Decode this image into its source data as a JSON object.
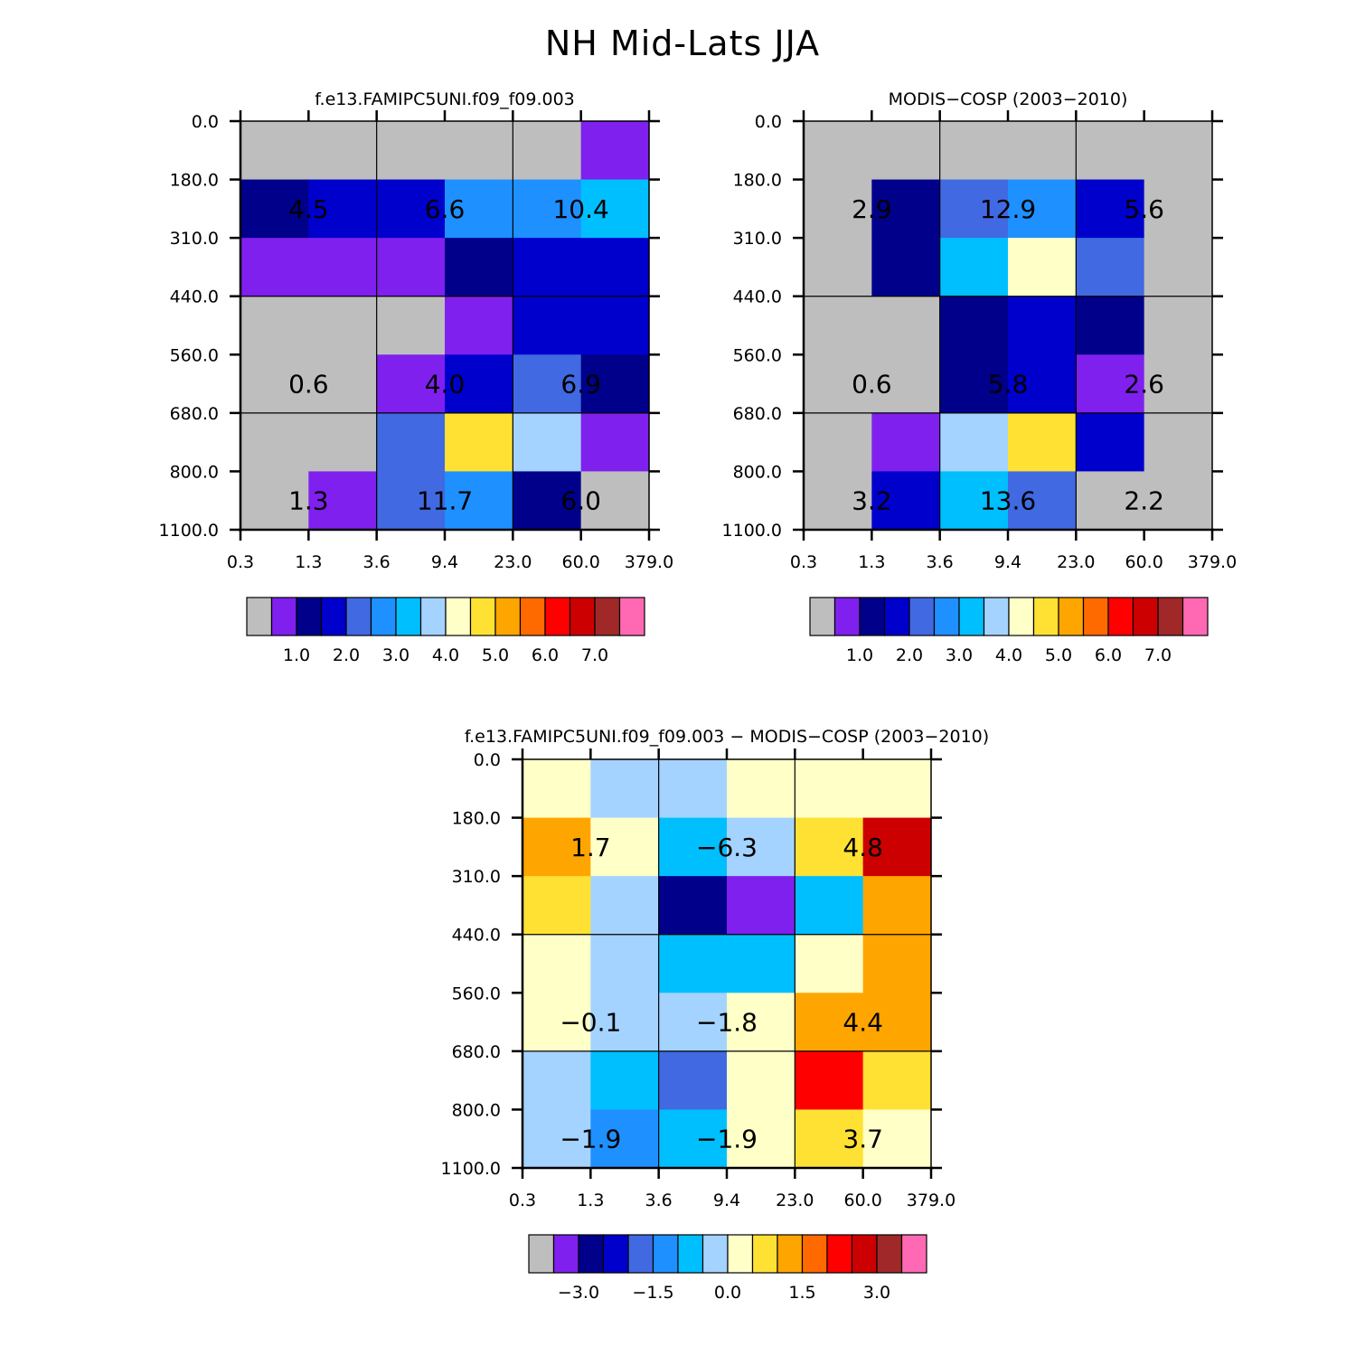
{
  "title": "NH Mid-Lats JJA",
  "palette": [
    "#bebebe",
    "#7f20ee",
    "#00008b",
    "#0000cd",
    "#4169e1",
    "#1e90ff",
    "#00bfff",
    "#a4d3ff",
    "#ffffc8",
    "#ffe133",
    "#ffa500",
    "#ff6a00",
    "#ff0000",
    "#cc0000",
    "#a02828",
    "#ff69b4"
  ],
  "chart_data": [
    {
      "type": "heatmap",
      "title": "f.e13.FAMIPC5UNI.f09_f09.003",
      "x_ticks": [
        "0.3",
        "1.3",
        "3.6",
        "9.4",
        "23.0",
        "60.0",
        "379.0"
      ],
      "y_ticks": [
        "0.0",
        "180.0",
        "310.0",
        "440.0",
        "560.0",
        "680.0",
        "800.0",
        "1100.0"
      ],
      "cell_color_index": [
        [
          0,
          0,
          0,
          0,
          0,
          1
        ],
        [
          2,
          3,
          3,
          5,
          5,
          6
        ],
        [
          1,
          1,
          1,
          2,
          3,
          3
        ],
        [
          0,
          0,
          0,
          1,
          3,
          3
        ],
        [
          0,
          0,
          1,
          3,
          4,
          2
        ],
        [
          0,
          0,
          4,
          9,
          7,
          1
        ],
        [
          0,
          1,
          4,
          5,
          2,
          0
        ]
      ],
      "cell_labels": [
        {
          "col": 0.5,
          "row": 1,
          "text": "4.5"
        },
        {
          "col": 2.5,
          "row": 1,
          "text": "6.6"
        },
        {
          "col": 4.5,
          "row": 1,
          "text": "10.4"
        },
        {
          "col": 0.5,
          "row": 4,
          "text": "0.6"
        },
        {
          "col": 2.5,
          "row": 4,
          "text": "4.0"
        },
        {
          "col": 4.5,
          "row": 4,
          "text": "6.9"
        },
        {
          "col": 0.5,
          "row": 6,
          "text": "1.3"
        },
        {
          "col": 2.5,
          "row": 6,
          "text": "11.7"
        },
        {
          "col": 4.5,
          "row": 6,
          "text": "6.0"
        }
      ],
      "colorbar_labels": [
        "1.0",
        "2.0",
        "3.0",
        "4.0",
        "5.0",
        "6.0",
        "7.0"
      ],
      "colorbar_label_start": 1
    },
    {
      "type": "heatmap",
      "title": "MODIS-COSP (2003-2010)",
      "x_ticks": [
        "0.3",
        "1.3",
        "3.6",
        "9.4",
        "23.0",
        "60.0",
        "379.0"
      ],
      "y_ticks": [
        "0.0",
        "180.0",
        "310.0",
        "440.0",
        "560.0",
        "680.0",
        "800.0",
        "1100.0"
      ],
      "cell_color_index": [
        [
          0,
          0,
          0,
          0,
          0,
          0
        ],
        [
          0,
          2,
          4,
          5,
          3,
          0
        ],
        [
          0,
          2,
          6,
          8,
          4,
          0
        ],
        [
          0,
          0,
          2,
          3,
          2,
          0
        ],
        [
          0,
          0,
          2,
          3,
          1,
          0
        ],
        [
          0,
          1,
          7,
          9,
          3,
          0
        ],
        [
          0,
          3,
          6,
          4,
          0,
          0
        ]
      ],
      "cell_labels": [
        {
          "col": 0.5,
          "row": 1,
          "text": "2.9"
        },
        {
          "col": 2.5,
          "row": 1,
          "text": "12.9"
        },
        {
          "col": 4.5,
          "row": 1,
          "text": "5.6"
        },
        {
          "col": 0.5,
          "row": 4,
          "text": "0.6"
        },
        {
          "col": 2.5,
          "row": 4,
          "text": "5.8"
        },
        {
          "col": 4.5,
          "row": 4,
          "text": "2.6"
        },
        {
          "col": 0.5,
          "row": 6,
          "text": "3.2"
        },
        {
          "col": 2.5,
          "row": 6,
          "text": "13.6"
        },
        {
          "col": 4.5,
          "row": 6,
          "text": "2.2"
        }
      ],
      "colorbar_labels": [
        "1.0",
        "2.0",
        "3.0",
        "4.0",
        "5.0",
        "6.0",
        "7.0"
      ],
      "colorbar_label_start": 1
    },
    {
      "type": "heatmap",
      "title": "f.e13.FAMIPC5UNI.f09_f09.003 - MODIS-COSP (2003-2010)",
      "x_ticks": [
        "0.3",
        "1.3",
        "3.6",
        "9.4",
        "23.0",
        "60.0",
        "379.0"
      ],
      "y_ticks": [
        "0.0",
        "180.0",
        "310.0",
        "440.0",
        "560.0",
        "680.0",
        "800.0",
        "1100.0"
      ],
      "cell_color_index": [
        [
          8,
          7,
          7,
          8,
          8,
          8
        ],
        [
          10,
          8,
          6,
          7,
          9,
          13
        ],
        [
          9,
          7,
          2,
          1,
          6,
          10
        ],
        [
          8,
          7,
          6,
          6,
          8,
          10
        ],
        [
          8,
          7,
          7,
          8,
          10,
          10
        ],
        [
          7,
          6,
          4,
          8,
          12,
          9
        ],
        [
          7,
          5,
          6,
          8,
          9,
          8
        ]
      ],
      "cell_labels": [
        {
          "col": 0.5,
          "row": 1,
          "text": "1.7"
        },
        {
          "col": 2.5,
          "row": 1,
          "text": "-6.3"
        },
        {
          "col": 4.5,
          "row": 1,
          "text": "4.8"
        },
        {
          "col": 0.5,
          "row": 4,
          "text": "-0.1"
        },
        {
          "col": 2.5,
          "row": 4,
          "text": "-1.8"
        },
        {
          "col": 4.5,
          "row": 4,
          "text": "4.4"
        },
        {
          "col": 0.5,
          "row": 6,
          "text": "-1.9"
        },
        {
          "col": 2.5,
          "row": 6,
          "text": "-1.9"
        },
        {
          "col": 4.5,
          "row": 6,
          "text": "3.7"
        }
      ],
      "colorbar_labels": [
        "-3.0",
        "-1.5",
        "0.0",
        "1.5",
        "3.0"
      ],
      "colorbar_label_start": 1
    }
  ]
}
